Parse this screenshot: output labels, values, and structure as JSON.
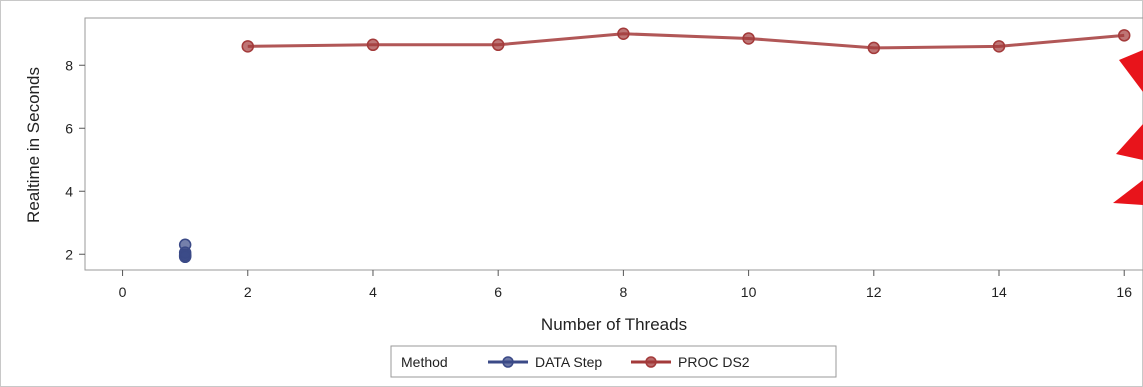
{
  "chart_data": {
    "type": "line",
    "title": "",
    "xlabel": "Number of Threads",
    "ylabel": "Realtime in Seconds",
    "xlim": [
      -0.6,
      16.3
    ],
    "ylim": [
      1.5,
      9.5
    ],
    "x_ticks": [
      0,
      2,
      4,
      6,
      8,
      10,
      12,
      14,
      16
    ],
    "y_ticks": [
      2,
      4,
      6,
      8
    ],
    "x_tick_labels": [
      "0",
      "2",
      "4",
      "6",
      "8",
      "10",
      "12",
      "14",
      "16"
    ],
    "y_tick_labels": [
      "2",
      "4",
      "6",
      "8"
    ],
    "grid": false,
    "legend": {
      "title": "Method",
      "position": "bottom-center",
      "entries": [
        "DATA Step",
        "PROC DS2"
      ]
    },
    "series": [
      {
        "name": "DATA Step",
        "color": "#3b4a87",
        "x": [
          1,
          1,
          1,
          1,
          1
        ],
        "y": [
          2.3,
          2.05,
          1.98,
          1.92,
          1.95
        ]
      },
      {
        "name": "PROC DS2",
        "color": "#a33a3a",
        "x": [
          2,
          4,
          6,
          8,
          10,
          12,
          14,
          16
        ],
        "y": [
          8.6,
          8.65,
          8.65,
          9.0,
          8.85,
          8.55,
          8.6,
          8.95
        ]
      }
    ]
  },
  "decoration": {
    "arrow_color": "#e8141b"
  }
}
